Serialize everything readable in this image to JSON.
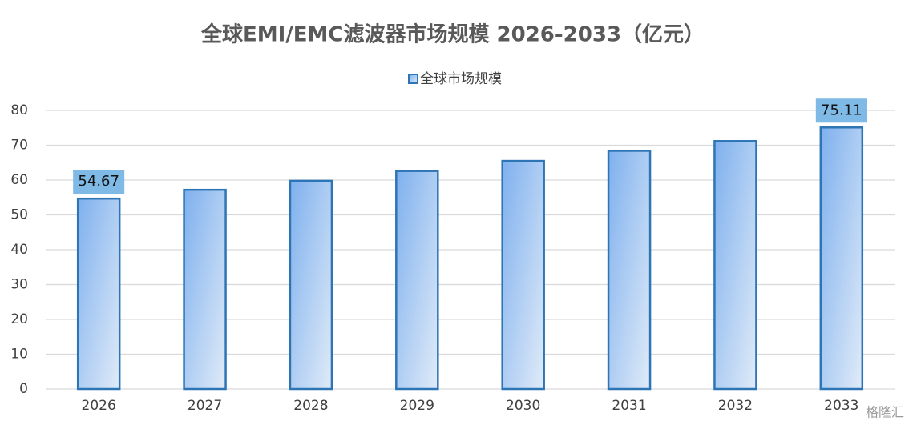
{
  "chart_data": {
    "type": "bar",
    "title": "全球EMI/EMC滤波器市场规模 2026-2033（亿元）",
    "categories": [
      "2026",
      "2027",
      "2028",
      "2029",
      "2030",
      "2031",
      "2032",
      "2033"
    ],
    "series": [
      {
        "name": "全球市场规模",
        "color": "#2e75b6",
        "values": [
          54.67,
          57.2,
          59.8,
          62.6,
          65.5,
          68.4,
          71.2,
          75.11
        ],
        "value_labels": [
          "54.67",
          null,
          null,
          null,
          null,
          null,
          null,
          "75.11"
        ]
      }
    ],
    "ylim": [
      0,
      80
    ],
    "yticks": [
      0,
      10,
      20,
      30,
      40,
      50,
      60,
      70,
      80
    ],
    "grid": true,
    "legend": "top",
    "watermark": "格隆汇"
  }
}
